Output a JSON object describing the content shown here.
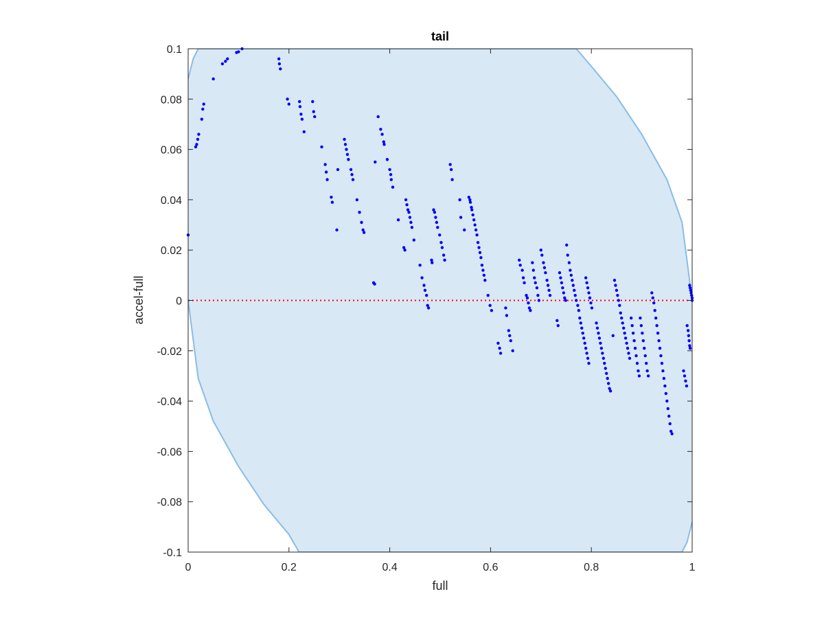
{
  "chart_data": {
    "type": "scatter",
    "title": "tail",
    "xlabel": "full",
    "ylabel": "accel-full",
    "xlim": [
      0,
      1
    ],
    "ylim": [
      -0.1,
      0.1
    ],
    "xticks": [
      "0",
      "0.2",
      "0.4",
      "0.6",
      "0.8",
      "1"
    ],
    "yticks": [
      "-0.1",
      "-0.08",
      "-0.06",
      "-0.04",
      "-0.02",
      "0",
      "0.02",
      "0.04",
      "0.06",
      "0.08",
      "0.1"
    ],
    "grid": false,
    "legend": "none",
    "colors": {
      "points": "#0000ff",
      "region_fill": "#d9e8f5",
      "region_edge": "#87bde6",
      "zero_line": "#ff0000",
      "axes": "#262626"
    },
    "series": [
      {
        "type": "scatter",
        "points": [
          [
            0.0,
            0.026
          ],
          [
            0.015,
            0.061
          ],
          [
            0.017,
            0.062
          ],
          [
            0.019,
            0.064
          ],
          [
            0.021,
            0.066
          ],
          [
            0.027,
            0.072
          ],
          [
            0.029,
            0.076
          ],
          [
            0.031,
            0.078
          ],
          [
            0.05,
            0.088
          ],
          [
            0.068,
            0.094
          ],
          [
            0.074,
            0.095
          ],
          [
            0.078,
            0.096
          ],
          [
            0.096,
            0.0985
          ],
          [
            0.1,
            0.0988
          ],
          [
            0.107,
            0.1
          ],
          [
            0.18,
            0.096
          ],
          [
            0.181,
            0.094
          ],
          [
            0.183,
            0.092
          ],
          [
            0.197,
            0.08
          ],
          [
            0.2,
            0.078
          ],
          [
            0.221,
            0.079
          ],
          [
            0.222,
            0.077
          ],
          [
            0.224,
            0.074
          ],
          [
            0.226,
            0.072
          ],
          [
            0.23,
            0.067
          ],
          [
            0.247,
            0.079
          ],
          [
            0.249,
            0.075
          ],
          [
            0.251,
            0.073
          ],
          [
            0.265,
            0.061
          ],
          [
            0.272,
            0.054
          ],
          [
            0.274,
            0.051
          ],
          [
            0.276,
            0.048
          ],
          [
            0.284,
            0.041
          ],
          [
            0.286,
            0.039
          ],
          [
            0.295,
            0.028
          ],
          [
            0.297,
            0.052
          ],
          [
            0.31,
            0.064
          ],
          [
            0.312,
            0.062
          ],
          [
            0.314,
            0.06
          ],
          [
            0.316,
            0.058
          ],
          [
            0.318,
            0.056
          ],
          [
            0.323,
            0.052
          ],
          [
            0.325,
            0.05
          ],
          [
            0.327,
            0.048
          ],
          [
            0.335,
            0.04
          ],
          [
            0.34,
            0.035
          ],
          [
            0.344,
            0.031
          ],
          [
            0.347,
            0.028
          ],
          [
            0.349,
            0.027
          ],
          [
            0.368,
            0.007
          ],
          [
            0.37,
            0.0065
          ],
          [
            0.371,
            0.055
          ],
          [
            0.377,
            0.073
          ],
          [
            0.382,
            0.068
          ],
          [
            0.385,
            0.066
          ],
          [
            0.388,
            0.063
          ],
          [
            0.389,
            0.062
          ],
          [
            0.395,
            0.056
          ],
          [
            0.4,
            0.052
          ],
          [
            0.402,
            0.05
          ],
          [
            0.403,
            0.048
          ],
          [
            0.406,
            0.045
          ],
          [
            0.417,
            0.032
          ],
          [
            0.428,
            0.021
          ],
          [
            0.43,
            0.02
          ],
          [
            0.432,
            0.04
          ],
          [
            0.434,
            0.038
          ],
          [
            0.436,
            0.036
          ],
          [
            0.438,
            0.035
          ],
          [
            0.44,
            0.033
          ],
          [
            0.442,
            0.031
          ],
          [
            0.444,
            0.029
          ],
          [
            0.448,
            0.024
          ],
          [
            0.46,
            0.014
          ],
          [
            0.464,
            0.009
          ],
          [
            0.468,
            0.006
          ],
          [
            0.47,
            0.004
          ],
          [
            0.473,
            0.002
          ],
          [
            0.475,
            -0.002
          ],
          [
            0.477,
            -0.003
          ],
          [
            0.483,
            0.016
          ],
          [
            0.484,
            0.015
          ],
          [
            0.487,
            0.036
          ],
          [
            0.489,
            0.035
          ],
          [
            0.491,
            0.033
          ],
          [
            0.493,
            0.031
          ],
          [
            0.495,
            0.029
          ],
          [
            0.499,
            0.026
          ],
          [
            0.502,
            0.023
          ],
          [
            0.504,
            0.021
          ],
          [
            0.507,
            0.018
          ],
          [
            0.509,
            0.016
          ],
          [
            0.52,
            0.054
          ],
          [
            0.522,
            0.052
          ],
          [
            0.524,
            0.048
          ],
          [
            0.539,
            0.04
          ],
          [
            0.541,
            0.033
          ],
          [
            0.548,
            0.028
          ],
          [
            0.557,
            0.041
          ],
          [
            0.559,
            0.04
          ],
          [
            0.56,
            0.039
          ],
          [
            0.562,
            0.037
          ],
          [
            0.563,
            0.036
          ],
          [
            0.565,
            0.034
          ],
          [
            0.567,
            0.032
          ],
          [
            0.569,
            0.03
          ],
          [
            0.571,
            0.028
          ],
          [
            0.573,
            0.026
          ],
          [
            0.575,
            0.023
          ],
          [
            0.577,
            0.021
          ],
          [
            0.579,
            0.019
          ],
          [
            0.581,
            0.017
          ],
          [
            0.583,
            0.014
          ],
          [
            0.585,
            0.012
          ],
          [
            0.587,
            0.01
          ],
          [
            0.589,
            0.008
          ],
          [
            0.595,
            0.002
          ],
          [
            0.599,
            -0.002
          ],
          [
            0.602,
            -0.004
          ],
          [
            0.615,
            -0.017
          ],
          [
            0.618,
            -0.019
          ],
          [
            0.62,
            -0.021
          ],
          [
            0.63,
            -0.003
          ],
          [
            0.632,
            -0.006
          ],
          [
            0.636,
            -0.012
          ],
          [
            0.638,
            -0.014
          ],
          [
            0.64,
            -0.016
          ],
          [
            0.644,
            -0.02
          ],
          [
            0.657,
            0.016
          ],
          [
            0.659,
            0.014
          ],
          [
            0.663,
            0.012
          ],
          [
            0.665,
            0.009
          ],
          [
            0.667,
            0.007
          ],
          [
            0.671,
            0.002
          ],
          [
            0.673,
            0.001
          ],
          [
            0.675,
            -0.001
          ],
          [
            0.677,
            -0.003
          ],
          [
            0.679,
            -0.004
          ],
          [
            0.683,
            0.015
          ],
          [
            0.685,
            0.012
          ],
          [
            0.687,
            0.009
          ],
          [
            0.689,
            0.007
          ],
          [
            0.692,
            0.005
          ],
          [
            0.694,
            0.002
          ],
          [
            0.696,
            0.0
          ],
          [
            0.7,
            0.02
          ],
          [
            0.702,
            0.018
          ],
          [
            0.705,
            0.015
          ],
          [
            0.707,
            0.013
          ],
          [
            0.709,
            0.011
          ],
          [
            0.712,
            0.008
          ],
          [
            0.714,
            0.006
          ],
          [
            0.716,
            0.004
          ],
          [
            0.718,
            0.002
          ],
          [
            0.732,
            -0.008
          ],
          [
            0.734,
            -0.01
          ],
          [
            0.737,
            0.011
          ],
          [
            0.739,
            0.009
          ],
          [
            0.741,
            0.007
          ],
          [
            0.743,
            0.005
          ],
          [
            0.745,
            0.003
          ],
          [
            0.747,
            0.001
          ],
          [
            0.749,
            0.0
          ],
          [
            0.751,
            0.022
          ],
          [
            0.753,
            0.018
          ],
          [
            0.756,
            0.015
          ],
          [
            0.758,
            0.012
          ],
          [
            0.76,
            0.01
          ],
          [
            0.762,
            0.008
          ],
          [
            0.764,
            0.006
          ],
          [
            0.766,
            0.004
          ],
          [
            0.768,
            0.002
          ],
          [
            0.77,
            0.0
          ],
          [
            0.773,
            -0.002
          ],
          [
            0.775,
            -0.004
          ],
          [
            0.777,
            -0.007
          ],
          [
            0.779,
            -0.009
          ],
          [
            0.781,
            -0.011
          ],
          [
            0.783,
            -0.013
          ],
          [
            0.785,
            -0.015
          ],
          [
            0.787,
            -0.017
          ],
          [
            0.789,
            -0.019
          ],
          [
            0.791,
            -0.021
          ],
          [
            0.793,
            -0.023
          ],
          [
            0.795,
            -0.025
          ],
          [
            0.789,
            0.009
          ],
          [
            0.791,
            0.007
          ],
          [
            0.793,
            0.005
          ],
          [
            0.795,
            0.003
          ],
          [
            0.797,
            0.001
          ],
          [
            0.799,
            -0.001
          ],
          [
            0.801,
            -0.003
          ],
          [
            0.81,
            -0.009
          ],
          [
            0.812,
            -0.011
          ],
          [
            0.814,
            -0.013
          ],
          [
            0.816,
            -0.015
          ],
          [
            0.818,
            -0.017
          ],
          [
            0.82,
            -0.019
          ],
          [
            0.822,
            -0.021
          ],
          [
            0.824,
            -0.023
          ],
          [
            0.826,
            -0.025
          ],
          [
            0.828,
            -0.027
          ],
          [
            0.83,
            -0.029
          ],
          [
            0.832,
            -0.031
          ],
          [
            0.834,
            -0.033
          ],
          [
            0.836,
            -0.035
          ],
          [
            0.838,
            -0.036
          ],
          [
            0.843,
            -0.014
          ],
          [
            0.846,
            0.008
          ],
          [
            0.848,
            0.006
          ],
          [
            0.85,
            0.004
          ],
          [
            0.852,
            0.002
          ],
          [
            0.854,
            0.0
          ],
          [
            0.856,
            -0.002
          ],
          [
            0.858,
            -0.005
          ],
          [
            0.86,
            -0.007
          ],
          [
            0.862,
            -0.009
          ],
          [
            0.864,
            -0.011
          ],
          [
            0.866,
            -0.013
          ],
          [
            0.868,
            -0.015
          ],
          [
            0.87,
            -0.017
          ],
          [
            0.872,
            -0.019
          ],
          [
            0.874,
            -0.021
          ],
          [
            0.876,
            -0.023
          ],
          [
            0.879,
            -0.007
          ],
          [
            0.881,
            -0.01
          ],
          [
            0.883,
            -0.013
          ],
          [
            0.885,
            -0.016
          ],
          [
            0.887,
            -0.019
          ],
          [
            0.889,
            -0.022
          ],
          [
            0.891,
            -0.025
          ],
          [
            0.893,
            -0.028
          ],
          [
            0.895,
            -0.03
          ],
          [
            0.897,
            -0.007
          ],
          [
            0.899,
            -0.01
          ],
          [
            0.901,
            -0.013
          ],
          [
            0.903,
            -0.016
          ],
          [
            0.905,
            -0.019
          ],
          [
            0.907,
            -0.022
          ],
          [
            0.909,
            -0.025
          ],
          [
            0.911,
            -0.028
          ],
          [
            0.913,
            -0.03
          ],
          [
            0.92,
            0.003
          ],
          [
            0.922,
            0.001
          ],
          [
            0.924,
            -0.001
          ],
          [
            0.926,
            -0.004
          ],
          [
            0.928,
            -0.007
          ],
          [
            0.93,
            -0.01
          ],
          [
            0.932,
            -0.013
          ],
          [
            0.934,
            -0.016
          ],
          [
            0.936,
            -0.019
          ],
          [
            0.938,
            -0.022
          ],
          [
            0.94,
            -0.025
          ],
          [
            0.942,
            -0.028
          ],
          [
            0.944,
            -0.031
          ],
          [
            0.946,
            -0.034
          ],
          [
            0.948,
            -0.037
          ],
          [
            0.95,
            -0.04
          ],
          [
            0.952,
            -0.043
          ],
          [
            0.954,
            -0.046
          ],
          [
            0.956,
            -0.049
          ],
          [
            0.958,
            -0.052
          ],
          [
            0.96,
            -0.053
          ],
          [
            0.983,
            -0.028
          ],
          [
            0.985,
            -0.03
          ],
          [
            0.987,
            -0.032
          ],
          [
            0.989,
            -0.034
          ],
          [
            0.99,
            -0.01
          ],
          [
            0.992,
            -0.012
          ],
          [
            0.993,
            -0.014
          ],
          [
            0.994,
            -0.016
          ],
          [
            0.995,
            -0.018
          ],
          [
            0.996,
            -0.019
          ],
          [
            0.995,
            0.006
          ],
          [
            0.996,
            0.005
          ],
          [
            0.997,
            0.004
          ],
          [
            0.998,
            0.003
          ],
          [
            0.999,
            0.002
          ],
          [
            1.0,
            0.001
          ],
          [
            1.0,
            0.0
          ]
        ]
      }
    ],
    "region": {
      "description_hidden": "",
      "upper_curve": [
        [
          0.0,
          0.088
        ],
        [
          0.01,
          0.096
        ],
        [
          0.02,
          0.1
        ],
        [
          0.77,
          0.1
        ],
        [
          0.8,
          0.093
        ],
        [
          0.85,
          0.081
        ],
        [
          0.9,
          0.066
        ],
        [
          0.95,
          0.048
        ],
        [
          0.98,
          0.031
        ],
        [
          1.0,
          0.0
        ]
      ],
      "lower_curve": [
        [
          0.0,
          0.0
        ],
        [
          0.02,
          -0.031
        ],
        [
          0.05,
          -0.048
        ],
        [
          0.1,
          -0.066
        ],
        [
          0.15,
          -0.081
        ],
        [
          0.2,
          -0.093
        ],
        [
          0.22,
          -0.1
        ],
        [
          0.98,
          -0.1
        ],
        [
          0.99,
          -0.096
        ],
        [
          1.0,
          -0.088
        ]
      ]
    },
    "reference_line": {
      "y": 0
    }
  }
}
